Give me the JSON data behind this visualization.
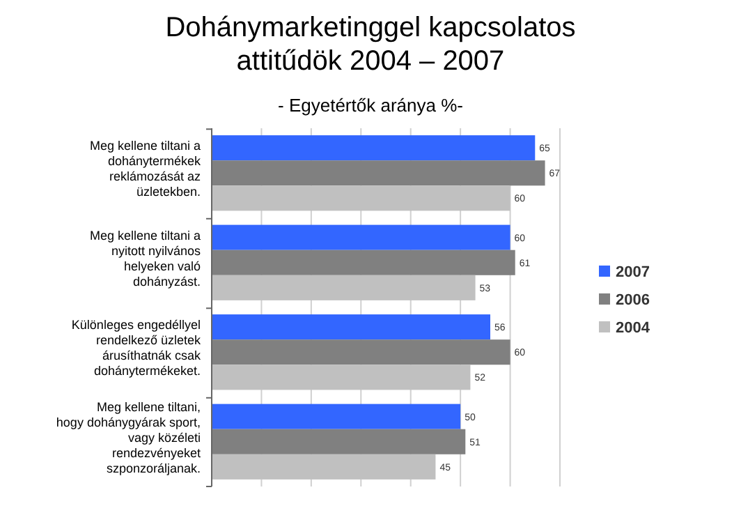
{
  "chart_data": {
    "type": "bar",
    "orientation": "horizontal",
    "title": "Dohánymarketinggel kapcsolatos attitűdök 2004 – 2007",
    "subtitle": "- Egyetértők aránya %-",
    "categories": [
      "Meg kellene tiltani a dohánytermékek reklámozását az üzletekben.",
      "Meg kellene tiltani a nyitott nyilvános helyeken való dohányzást.",
      "Különleges engedéllyel rendelkező üzletek árusíthatnák csak dohánytermékeket.",
      "Meg kellene tiltani, hogy dohánygyárak sport, vagy közéleti rendezvényeket szponzoráljanak."
    ],
    "series": [
      {
        "name": "2007",
        "color": "#3366ff",
        "values": [
          65,
          60,
          56,
          50
        ]
      },
      {
        "name": "2006",
        "color": "#808080",
        "values": [
          67,
          61,
          60,
          51
        ]
      },
      {
        "name": "2004",
        "color": "#c0c0c0",
        "values": [
          60,
          53,
          52,
          45
        ]
      }
    ],
    "xlim": [
      0,
      70
    ],
    "xticks": [
      {
        "value": 0,
        "label": null
      },
      {
        "value": 10,
        "label": null
      },
      {
        "value": 20,
        "label": null
      },
      {
        "value": 30,
        "label": null
      },
      {
        "value": 40,
        "label": null
      },
      {
        "value": 50,
        "label": null
      },
      {
        "value": 60,
        "label": null
      },
      {
        "value": 70,
        "label": null
      }
    ],
    "tick_labels": "y",
    "grid": "x",
    "legend": "right",
    "data_labels": true
  }
}
